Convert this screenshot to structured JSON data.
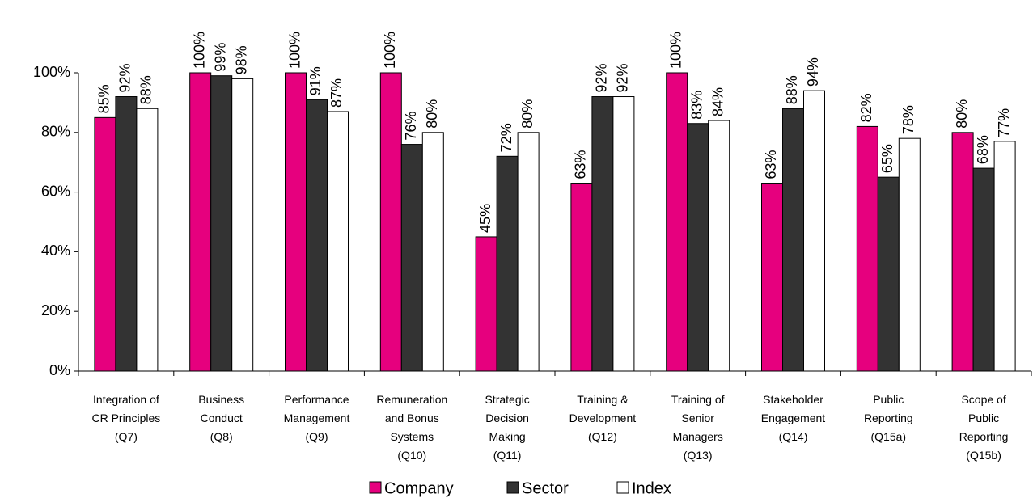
{
  "chart_data": {
    "type": "bar",
    "categories": [
      "Integration of\nCR Principles\n(Q7)",
      "Business\nConduct\n(Q8)",
      "Performance\nManagement\n(Q9)",
      "Remuneration\nand Bonus\nSystems\n(Q10)",
      "Strategic\nDecision\nMaking\n(Q11)",
      "Training &\nDevelopment\n(Q12)",
      "Training of\nSenior\nManagers\n(Q13)",
      "Stakeholder\nEngagement\n(Q14)",
      "Public\nReporting\n(Q15a)",
      "Scope of\nPublic\nReporting\n(Q15b)"
    ],
    "series": [
      {
        "name": "Company",
        "color": "#e6007e",
        "values": [
          85,
          100,
          100,
          100,
          45,
          63,
          100,
          63,
          82,
          80
        ],
        "value_labels": [
          "85%",
          "100%",
          "100%",
          "100%",
          "45%",
          "63%",
          "100%",
          "63%",
          "82%",
          "80%"
        ]
      },
      {
        "name": "Sector",
        "color": "#333333",
        "values": [
          92,
          99,
          91,
          76,
          72,
          92,
          83,
          88,
          65,
          68
        ],
        "value_labels": [
          "92%",
          "99%",
          "91%",
          "76%",
          "72%",
          "92%",
          "83%",
          "88%",
          "65%",
          "68%"
        ]
      },
      {
        "name": "Index",
        "color": "#ffffff",
        "values": [
          88,
          98,
          87,
          80,
          80,
          92,
          84,
          94,
          78,
          77
        ],
        "value_labels": [
          "88%",
          "98%",
          "87%",
          "80%",
          "80%",
          "92%",
          "84%",
          "94%",
          "78%",
          "77%"
        ]
      }
    ],
    "ylim": [
      0,
      100
    ],
    "yticks": [
      {
        "value": 0,
        "label": "0%"
      },
      {
        "value": 20,
        "label": "20%"
      },
      {
        "value": 40,
        "label": "40%"
      },
      {
        "value": 60,
        "label": "60%"
      },
      {
        "value": 80,
        "label": "80%"
      },
      {
        "value": 100,
        "label": "100%"
      }
    ],
    "grid": false,
    "legend": "bottom"
  }
}
